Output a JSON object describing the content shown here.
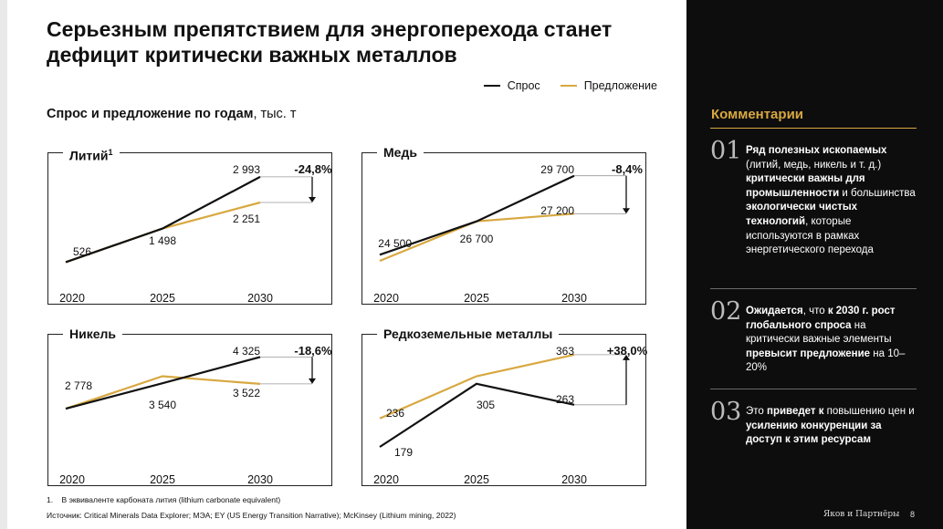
{
  "title": "Серьезным препятствием для энергоперехода станет дефицит критически важных металлов",
  "legend": {
    "demand": "Спрос",
    "supply": "Предложение"
  },
  "colors": {
    "demand": "#111111",
    "supply": "#d8a840",
    "accent": "#d8a840"
  },
  "subtitle": {
    "bold": "Спрос и предложение по годам",
    "rest": ", тыс. т"
  },
  "chart_data": [
    {
      "type": "line",
      "title": "Литий",
      "title_sup": "1",
      "x": [
        "2020",
        "2025",
        "2030"
      ],
      "series": [
        {
          "name": "Спрос",
          "values": [
            526,
            1498,
            2993
          ]
        },
        {
          "name": "Предложение",
          "values": [
            526,
            1498,
            2251
          ]
        }
      ],
      "labels": [
        "526",
        "1 498",
        "2 993",
        "2 251"
      ],
      "delta": "-24,8%",
      "ylim": [
        300,
        3200
      ]
    },
    {
      "type": "line",
      "title": "Медь",
      "title_sup": "",
      "x": [
        "2020",
        "2025",
        "2030"
      ],
      "series": [
        {
          "name": "Спрос",
          "values": [
            24500,
            26700,
            29700
          ]
        },
        {
          "name": "Предложение",
          "values": [
            24100,
            26700,
            27200
          ]
        }
      ],
      "labels": [
        "24 500",
        "26 700",
        "29 700",
        "27 200"
      ],
      "delta": "-8,4%",
      "ylim": [
        23500,
        30100
      ]
    },
    {
      "type": "line",
      "title": "Никель",
      "title_sup": "",
      "x": [
        "2020",
        "2025",
        "2030"
      ],
      "series": [
        {
          "name": "Спрос",
          "values": [
            2778,
            3540,
            4325
          ]
        },
        {
          "name": "Предложение",
          "values": [
            2778,
            3750,
            3522
          ]
        }
      ],
      "labels": [
        "2 778",
        "3 540",
        "4 325",
        "3 522"
      ],
      "delta": "-18,6%",
      "ylim": [
        1500,
        4500
      ]
    },
    {
      "type": "line",
      "title": "Редкоземельные металлы",
      "title_sup": "",
      "x": [
        "2020",
        "2025",
        "2030"
      ],
      "series": [
        {
          "name": "Спрос",
          "values": [
            179,
            305,
            263
          ]
        },
        {
          "name": "Предложение",
          "values": [
            236,
            320,
            363
          ]
        }
      ],
      "labels": [
        "179",
        "305",
        "363",
        "263",
        "236"
      ],
      "delta": "+38,0%",
      "ylim": [
        170,
        370
      ]
    }
  ],
  "footnote": "1.    В эквиваленте карбоната лития (lithium carbonate equivalent)",
  "source": "Источник: Critical Minerals Data Explorer; МЭА; EY (US Energy Transition Narrative); McKinsey (Lithium mining, 2022)",
  "comments": {
    "title": "Комментарии",
    "items": [
      {
        "num": "01",
        "html": "<b>Ряд полезных ископаемых</b> (литий, медь, никель и т. д.) <b>критически важны для промышленности</b> и большинства <b>экологически чистых технологий</b>, которые используются в рамках энергетического перехода"
      },
      {
        "num": "02",
        "html": "<b>Ожидается</b>, что <b>к 2030 г. рост глобального спроса</b> на критически важные элементы <b>превысит предложение</b> на 10–20%"
      },
      {
        "num": "03",
        "html": "Это <b>приведет к</b> повышению цен и <b>усилению конкуренции за доступ к этим ресурсам</b>"
      }
    ]
  },
  "brand": "Яков и Партнёры",
  "page_number": "8"
}
